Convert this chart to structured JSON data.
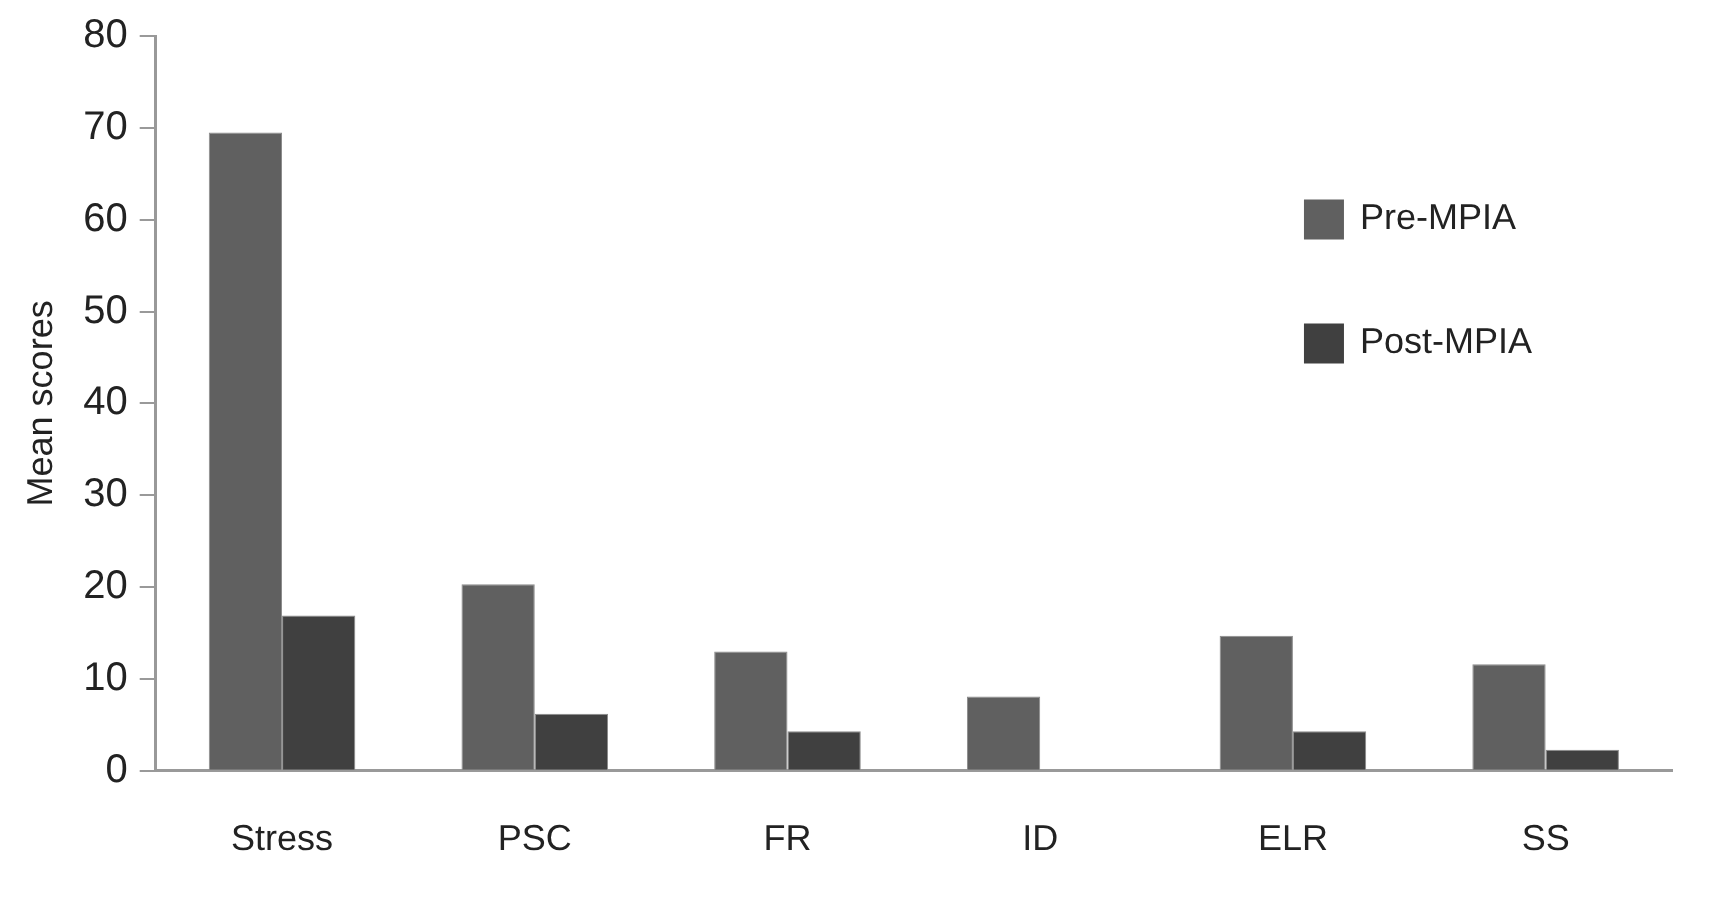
{
  "chart_data": {
    "type": "bar",
    "ylabel": "Mean scores",
    "categories": [
      "Stress",
      "PSC",
      "FR",
      "ID",
      "ELR",
      "SS"
    ],
    "series": [
      {
        "name": "Pre-MPIA",
        "color": "#606060",
        "values": [
          69.5,
          20.3,
          13.0,
          8.1,
          14.7,
          11.6
        ]
      },
      {
        "name": "Post-MPIA",
        "color": "#404040",
        "values": [
          16.9,
          6.2,
          4.3,
          null,
          4.3,
          2.3
        ]
      }
    ],
    "ylim": [
      0,
      80
    ],
    "yticks": [
      0,
      10,
      20,
      30,
      40,
      50,
      60,
      70,
      80
    ],
    "grid": false,
    "legend": "right"
  }
}
